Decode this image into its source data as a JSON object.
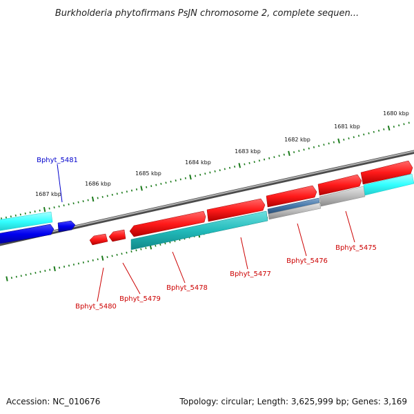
{
  "title": "Burkholderia phytofirmans PsJN chromosome 2, complete sequen...",
  "footer": {
    "accession": "Accession: NC_010676",
    "topology": "Topology: circular; Length: 3,625,999 bp; Genes: 3,169"
  },
  "ruler_labels": [
    "1680 kbp",
    "1681 kbp",
    "1682 kbp",
    "1683 kbp",
    "1684 kbp",
    "1685 kbp",
    "1686 kbp",
    "1687 kbp"
  ],
  "genes": [
    {
      "id": "Bphyt_5481",
      "label": "Bphyt_5481",
      "color": "#0000cc"
    },
    {
      "id": "Bphyt_5480",
      "label": "Bphyt_5480",
      "color": "#cc0000"
    },
    {
      "id": "Bphyt_5479",
      "label": "Bphyt_5479",
      "color": "#cc0000"
    },
    {
      "id": "Bphyt_5478",
      "label": "Bphyt_5478",
      "color": "#cc0000"
    },
    {
      "id": "Bphyt_5477",
      "label": "Bphyt_5477",
      "color": "#cc0000"
    },
    {
      "id": "Bphyt_5476",
      "label": "Bphyt_5476",
      "color": "#cc0000"
    },
    {
      "id": "Bphyt_5475",
      "label": "Bphyt_5475",
      "color": "#cc0000"
    }
  ],
  "colors": {
    "forward_gene": "#ff1a1a",
    "reverse_gene": "#0000ee",
    "cds_teal": "#22cccc",
    "cds_cyan": "#33ffff",
    "cds_grey": "#bbbbbb",
    "cds_steel": "#4477aa",
    "backbone": "#777777",
    "tick": "#1a7a1a"
  }
}
